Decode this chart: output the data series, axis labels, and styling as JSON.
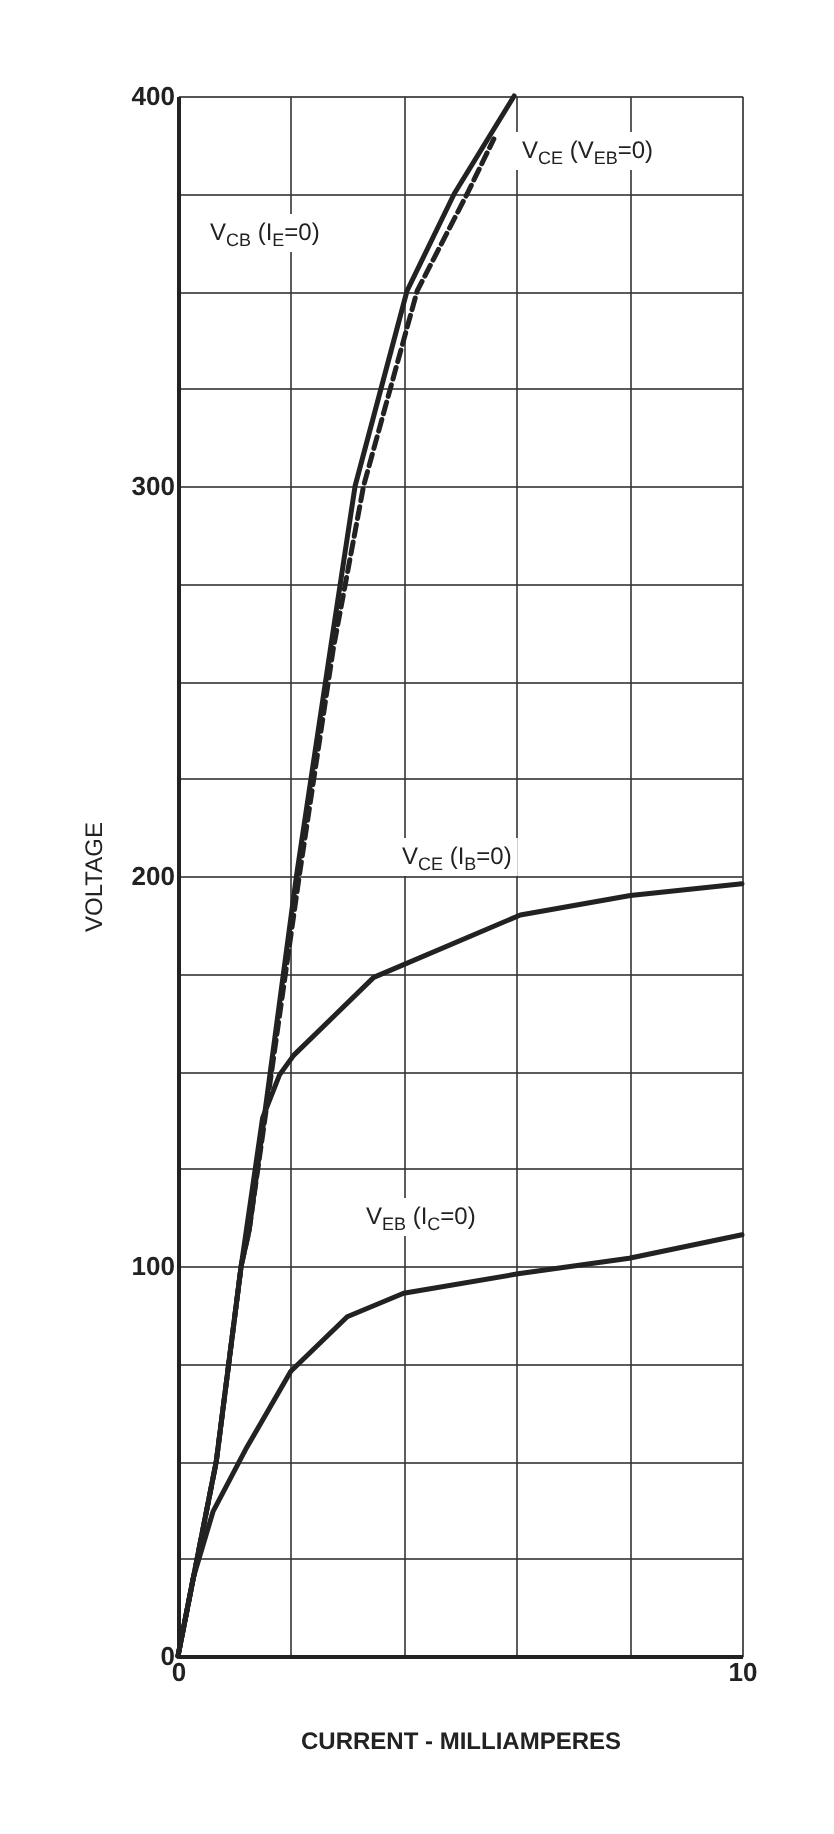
{
  "chart_data": {
    "type": "line",
    "xlabel": "CURRENT - MILLIAMPERES",
    "ylabel": "VOLTAGE",
    "xlim": [
      0,
      10
    ],
    "ylim": [
      0,
      400
    ],
    "xticks": [
      0,
      {
        "value": 2,
        "label": null
      },
      {
        "value": 4,
        "label": null
      },
      {
        "value": 6,
        "label": null
      },
      {
        "value": 8,
        "label": null
      },
      10
    ],
    "yticks": [
      0,
      {
        "value": 25,
        "label": null
      },
      {
        "value": 50,
        "label": null
      },
      {
        "value": 75,
        "label": null
      },
      100,
      {
        "value": 125,
        "label": null
      },
      {
        "value": 150,
        "label": null
      },
      {
        "value": 175,
        "label": null
      },
      200,
      {
        "value": 225,
        "label": null
      },
      {
        "value": 250,
        "label": null
      },
      {
        "value": 275,
        "label": null
      },
      300,
      {
        "value": 325,
        "label": null
      },
      {
        "value": 350,
        "label": null
      },
      {
        "value": 375,
        "label": null
      },
      400
    ],
    "grid": true,
    "marker": "none",
    "series": [
      {
        "color": "#222222",
        "line_style": "solid",
        "x": [
          0,
          0.68,
          0.9,
          1.12,
          1.26,
          2.1,
          2.7,
          3.14,
          4.06,
          4.9,
          5.96
        ],
        "values": [
          0,
          50,
          75,
          100,
          109,
          200,
          258,
          300,
          350,
          375,
          400
        ]
      },
      {
        "color": "#222222",
        "line_style": "dashed",
        "x": [
          0,
          0.68,
          0.9,
          1.12,
          1.26,
          2.15,
          2.75,
          3.29,
          4.24,
          5.13,
          5.6
        ],
        "values": [
          0,
          50,
          75,
          100,
          109,
          200,
          258,
          300,
          350,
          375,
          389
        ]
      },
      {
        "color": "#222222",
        "line_style": "solid",
        "x": [
          0,
          0.68,
          1.12,
          1.5,
          1.8,
          2.05,
          3.47,
          6.07,
          8.02,
          10
        ],
        "values": [
          0,
          50,
          100,
          138,
          149,
          154,
          174,
          190,
          195,
          198
        ]
      },
      {
        "color": "#222222",
        "line_style": "solid",
        "x": [
          0,
          0.27,
          0.62,
          1.2,
          2.0,
          3.0,
          4.0,
          6.03,
          8.0,
          10
        ],
        "values": [
          0,
          20,
          37,
          53,
          73,
          87,
          93,
          98,
          102,
          108
        ]
      }
    ],
    "annotations": [
      "V$_{CB}$ (I$_{E}$=0)",
      "V$_{CE}$ (V$_{EB}$=0)",
      "V$_{CE}$ (I$_{B}$=0)",
      "V$_{EB}$ (I$_{C}$=0)"
    ]
  }
}
